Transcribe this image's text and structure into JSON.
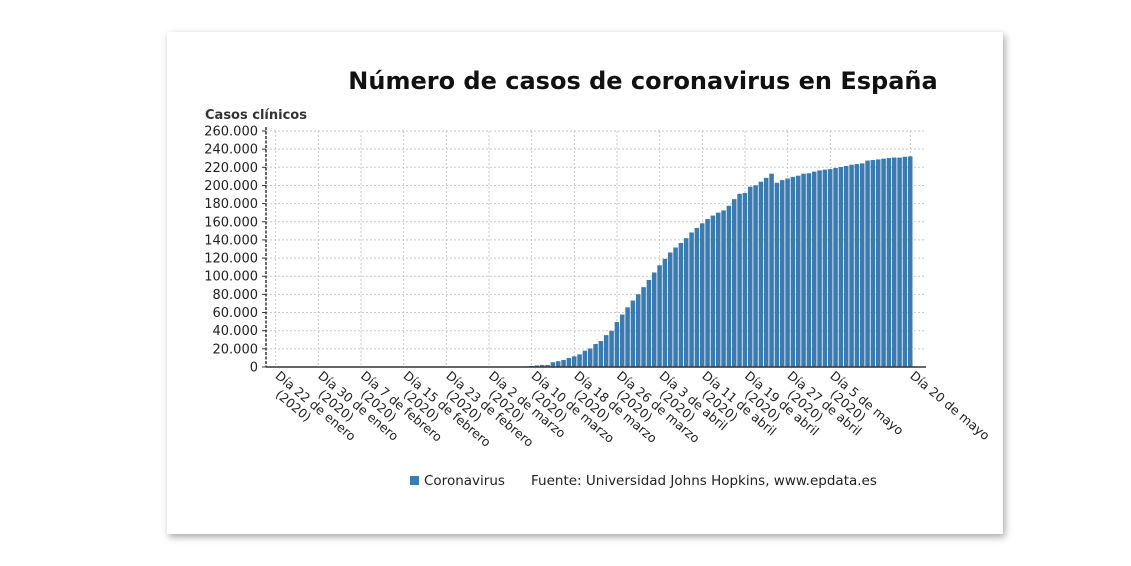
{
  "chart_data": {
    "type": "bar",
    "title": "Número de casos de coronavirus en España",
    "ylabel": "Casos clínicos",
    "xlabel": "",
    "ylim": [
      0,
      260000
    ],
    "y_ticks": [
      "0",
      "20.000",
      "40.000",
      "60.000",
      "80.000",
      "100.000",
      "120.000",
      "140.000",
      "160.000",
      "180.000",
      "200.000",
      "220.000",
      "240.000",
      "260.000"
    ],
    "y_tick_values": [
      0,
      20000,
      40000,
      60000,
      80000,
      100000,
      120000,
      140000,
      160000,
      180000,
      200000,
      220000,
      240000,
      260000
    ],
    "x_tick_labels": [
      {
        "lines": [
          "Día 22 de enero",
          "(2020)"
        ],
        "day": 0
      },
      {
        "lines": [
          "Día 30 de enero",
          "(2020)"
        ],
        "day": 8
      },
      {
        "lines": [
          "Día 7 de febrero",
          "(2020)"
        ],
        "day": 16
      },
      {
        "lines": [
          "Día 15 de febrero",
          "(2020)"
        ],
        "day": 24
      },
      {
        "lines": [
          "Día 23 de febrero",
          "(2020)"
        ],
        "day": 32
      },
      {
        "lines": [
          "Día 2 de marzo",
          "(2020)"
        ],
        "day": 40
      },
      {
        "lines": [
          "Día 10 de marzo",
          "(2020)"
        ],
        "day": 48
      },
      {
        "lines": [
          "Día 18 de marzo",
          "(2020)"
        ],
        "day": 56
      },
      {
        "lines": [
          "Día 26 de marzo",
          "(2020)"
        ],
        "day": 64
      },
      {
        "lines": [
          "Día 3 de abril",
          "(2020)"
        ],
        "day": 72
      },
      {
        "lines": [
          "Día 11 de abril",
          "(2020)"
        ],
        "day": 80
      },
      {
        "lines": [
          "Día 19 de abril",
          "(2020)"
        ],
        "day": 88
      },
      {
        "lines": [
          "Día 27 de abril",
          "(2020)"
        ],
        "day": 96
      },
      {
        "lines": [
          "Día 5 de mayo",
          "(2020)"
        ],
        "day": 104
      },
      {
        "lines": [
          "Día 20 de mayo"
        ],
        "day": 119
      }
    ],
    "series": [
      {
        "name": "Coronavirus",
        "color": "#3a7bb0",
        "values": [
          0,
          0,
          0,
          0,
          0,
          0,
          0,
          0,
          0,
          1,
          1,
          1,
          1,
          1,
          1,
          1,
          1,
          2,
          2,
          2,
          2,
          2,
          2,
          2,
          2,
          2,
          2,
          2,
          2,
          2,
          2,
          2,
          2,
          2,
          2,
          2,
          12,
          25,
          32,
          45,
          84,
          120,
          165,
          222,
          259,
          400,
          500,
          673,
          1073,
          1695,
          2277,
          2277,
          5232,
          6391,
          7798,
          9942,
          11748,
          13910,
          17963,
          20410,
          25374,
          28603,
          35136,
          39885,
          49515,
          57786,
          65719,
          73235,
          80110,
          87956,
          95923,
          104118,
          112065,
          119199,
          126168,
          131646,
          136675,
          141942,
          148220,
          153222,
          158273,
          163027,
          166831,
          170099,
          172541,
          177644,
          184948,
          190839,
          191726,
          198674,
          200210,
          204178,
          208389,
          213024,
          202990,
          205905,
          207634,
          209465,
          210773,
          212917,
          213435,
          215216,
          216582,
          217466,
          218011,
          219329,
          220325,
          221447,
          222857,
          223578,
          224350,
          227436,
          228030,
          228691,
          229540,
          230183,
          230698,
          230698,
          231606,
          232037
        ]
      }
    ],
    "legend": {
      "label": "Coronavirus",
      "placement": "bottom"
    },
    "source": "Fuente: Universidad Johns Hopkins, www.epdata.es",
    "grid": {
      "x": true,
      "y": true,
      "style": "dashed"
    }
  }
}
